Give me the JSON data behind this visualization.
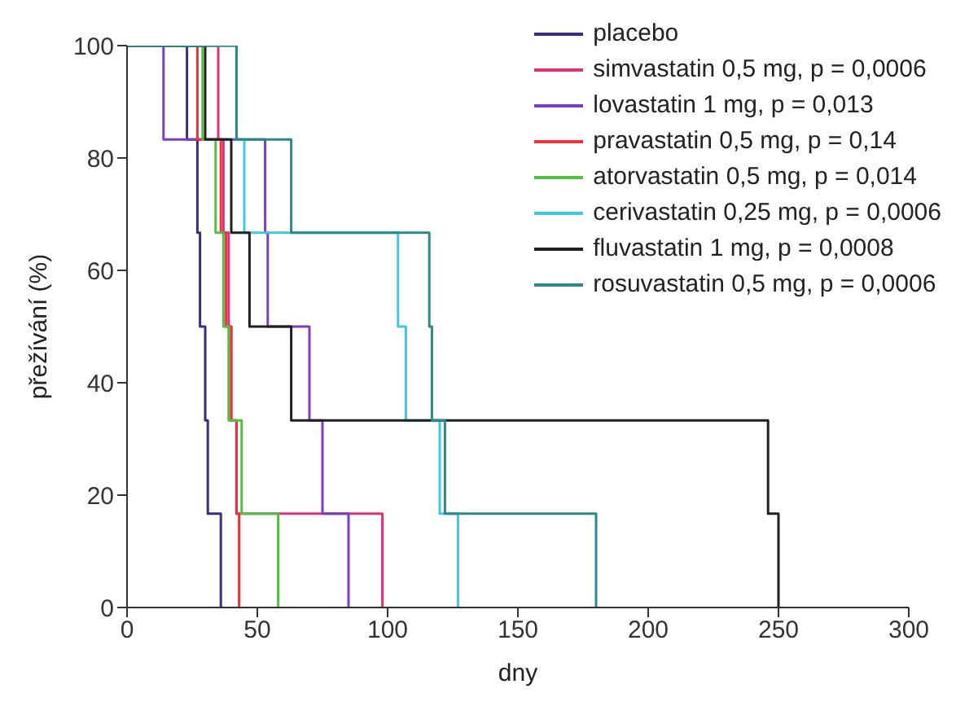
{
  "chart_data": {
    "type": "step",
    "xlabel": "dny",
    "ylabel": "přežívání (%)",
    "xlim": [
      0,
      300
    ],
    "xticks": [
      0,
      50,
      100,
      150,
      200,
      250,
      300
    ],
    "ylim": [
      0,
      100
    ],
    "yticks": [
      0,
      20,
      40,
      60,
      80,
      100
    ],
    "grid": false,
    "legend": "top right",
    "marker": "none",
    "line_style": "solid",
    "series": [
      {
        "name": "placebo",
        "color": "#3a2f7a",
        "x": [
          0,
          23,
          27,
          28,
          30,
          31,
          36
        ],
        "values": [
          100,
          83.3,
          66.7,
          50,
          33.3,
          16.7,
          0
        ]
      },
      {
        "name": "simvastatin 0,5 mg, p = 0,0006",
        "color": "#e0307a",
        "x": [
          0,
          35,
          37,
          39,
          40,
          42,
          98
        ],
        "values": [
          100,
          83.3,
          66.7,
          50,
          33.3,
          16.7,
          0
        ]
      },
      {
        "name": "lovastatin 1 mg, p = 0,013",
        "color": "#7a3fc0",
        "x": [
          0,
          14,
          53,
          54,
          70,
          75,
          85
        ],
        "values": [
          100,
          83.3,
          66.7,
          50,
          33.3,
          16.7,
          0
        ]
      },
      {
        "name": "pravastatin 0,5 mg, p = 0,14",
        "color": "#f0303a",
        "x": [
          0,
          27,
          36,
          38,
          40,
          42,
          43
        ],
        "values": [
          100,
          83.3,
          66.7,
          50,
          33.3,
          16.7,
          0
        ]
      },
      {
        "name": "atorvastatin 0,5 mg, p = 0,014",
        "color": "#50c040",
        "x": [
          0,
          29,
          34,
          37,
          39,
          44,
          58
        ],
        "values": [
          100,
          83.3,
          66.7,
          50,
          33.3,
          16.7,
          0
        ]
      },
      {
        "name": "cerivastatin 0,25 mg, p = 0,0006",
        "color": "#40c8e0",
        "x": [
          0,
          42,
          45,
          104,
          107,
          120,
          127
        ],
        "values": [
          100,
          83.3,
          66.7,
          50,
          33.3,
          16.7,
          0
        ]
      },
      {
        "name": "fluvastatin 1 mg, p = 0,0008",
        "color": "#202020",
        "x": [
          0,
          30,
          40,
          47,
          63,
          246,
          250
        ],
        "values": [
          100,
          83.3,
          66.7,
          50,
          33.3,
          16.7,
          0
        ]
      },
      {
        "name": "rosuvastatin 0,5 mg, p = 0,0006",
        "color": "#2a8a8a",
        "x": [
          0,
          42,
          63,
          116,
          117,
          122,
          180
        ],
        "values": [
          100,
          83.3,
          66.7,
          50,
          33.3,
          16.7,
          0
        ]
      }
    ]
  }
}
